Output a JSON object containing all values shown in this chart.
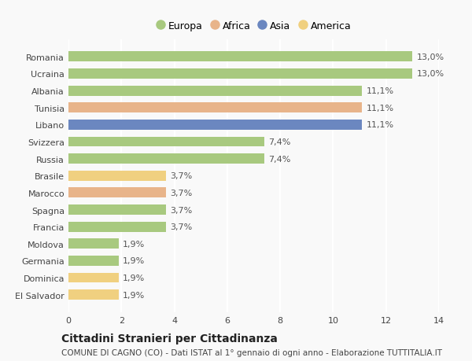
{
  "countries": [
    "Romania",
    "Ucraina",
    "Albania",
    "Tunisia",
    "Libano",
    "Svizzera",
    "Russia",
    "Brasile",
    "Marocco",
    "Spagna",
    "Francia",
    "Moldova",
    "Germania",
    "Dominica",
    "El Salvador"
  ],
  "values": [
    13.0,
    13.0,
    11.1,
    11.1,
    11.1,
    7.4,
    7.4,
    3.7,
    3.7,
    3.7,
    3.7,
    1.9,
    1.9,
    1.9,
    1.9
  ],
  "labels": [
    "13,0%",
    "13,0%",
    "11,1%",
    "11,1%",
    "11,1%",
    "7,4%",
    "7,4%",
    "3,7%",
    "3,7%",
    "3,7%",
    "3,7%",
    "1,9%",
    "1,9%",
    "1,9%",
    "1,9%"
  ],
  "continents": [
    "Europa",
    "Europa",
    "Europa",
    "Africa",
    "Asia",
    "Europa",
    "Europa",
    "America",
    "Africa",
    "Europa",
    "Europa",
    "Europa",
    "Europa",
    "America",
    "America"
  ],
  "colors": {
    "Europa": "#a8c97f",
    "Africa": "#e8b48a",
    "Asia": "#6b87c0",
    "America": "#f0d080"
  },
  "legend_order": [
    "Europa",
    "Africa",
    "Asia",
    "America"
  ],
  "xlim": [
    0,
    14
  ],
  "xticks": [
    0,
    2,
    4,
    6,
    8,
    10,
    12,
    14
  ],
  "title": "Cittadini Stranieri per Cittadinanza",
  "subtitle": "COMUNE DI CAGNO (CO) - Dati ISTAT al 1° gennaio di ogni anno - Elaborazione TUTTITALIA.IT",
  "bg_color": "#f9f9f9",
  "grid_color": "#ffffff",
  "bar_height": 0.6,
  "label_fontsize": 8,
  "ytick_fontsize": 8,
  "xtick_fontsize": 8,
  "title_fontsize": 10,
  "subtitle_fontsize": 7.5
}
